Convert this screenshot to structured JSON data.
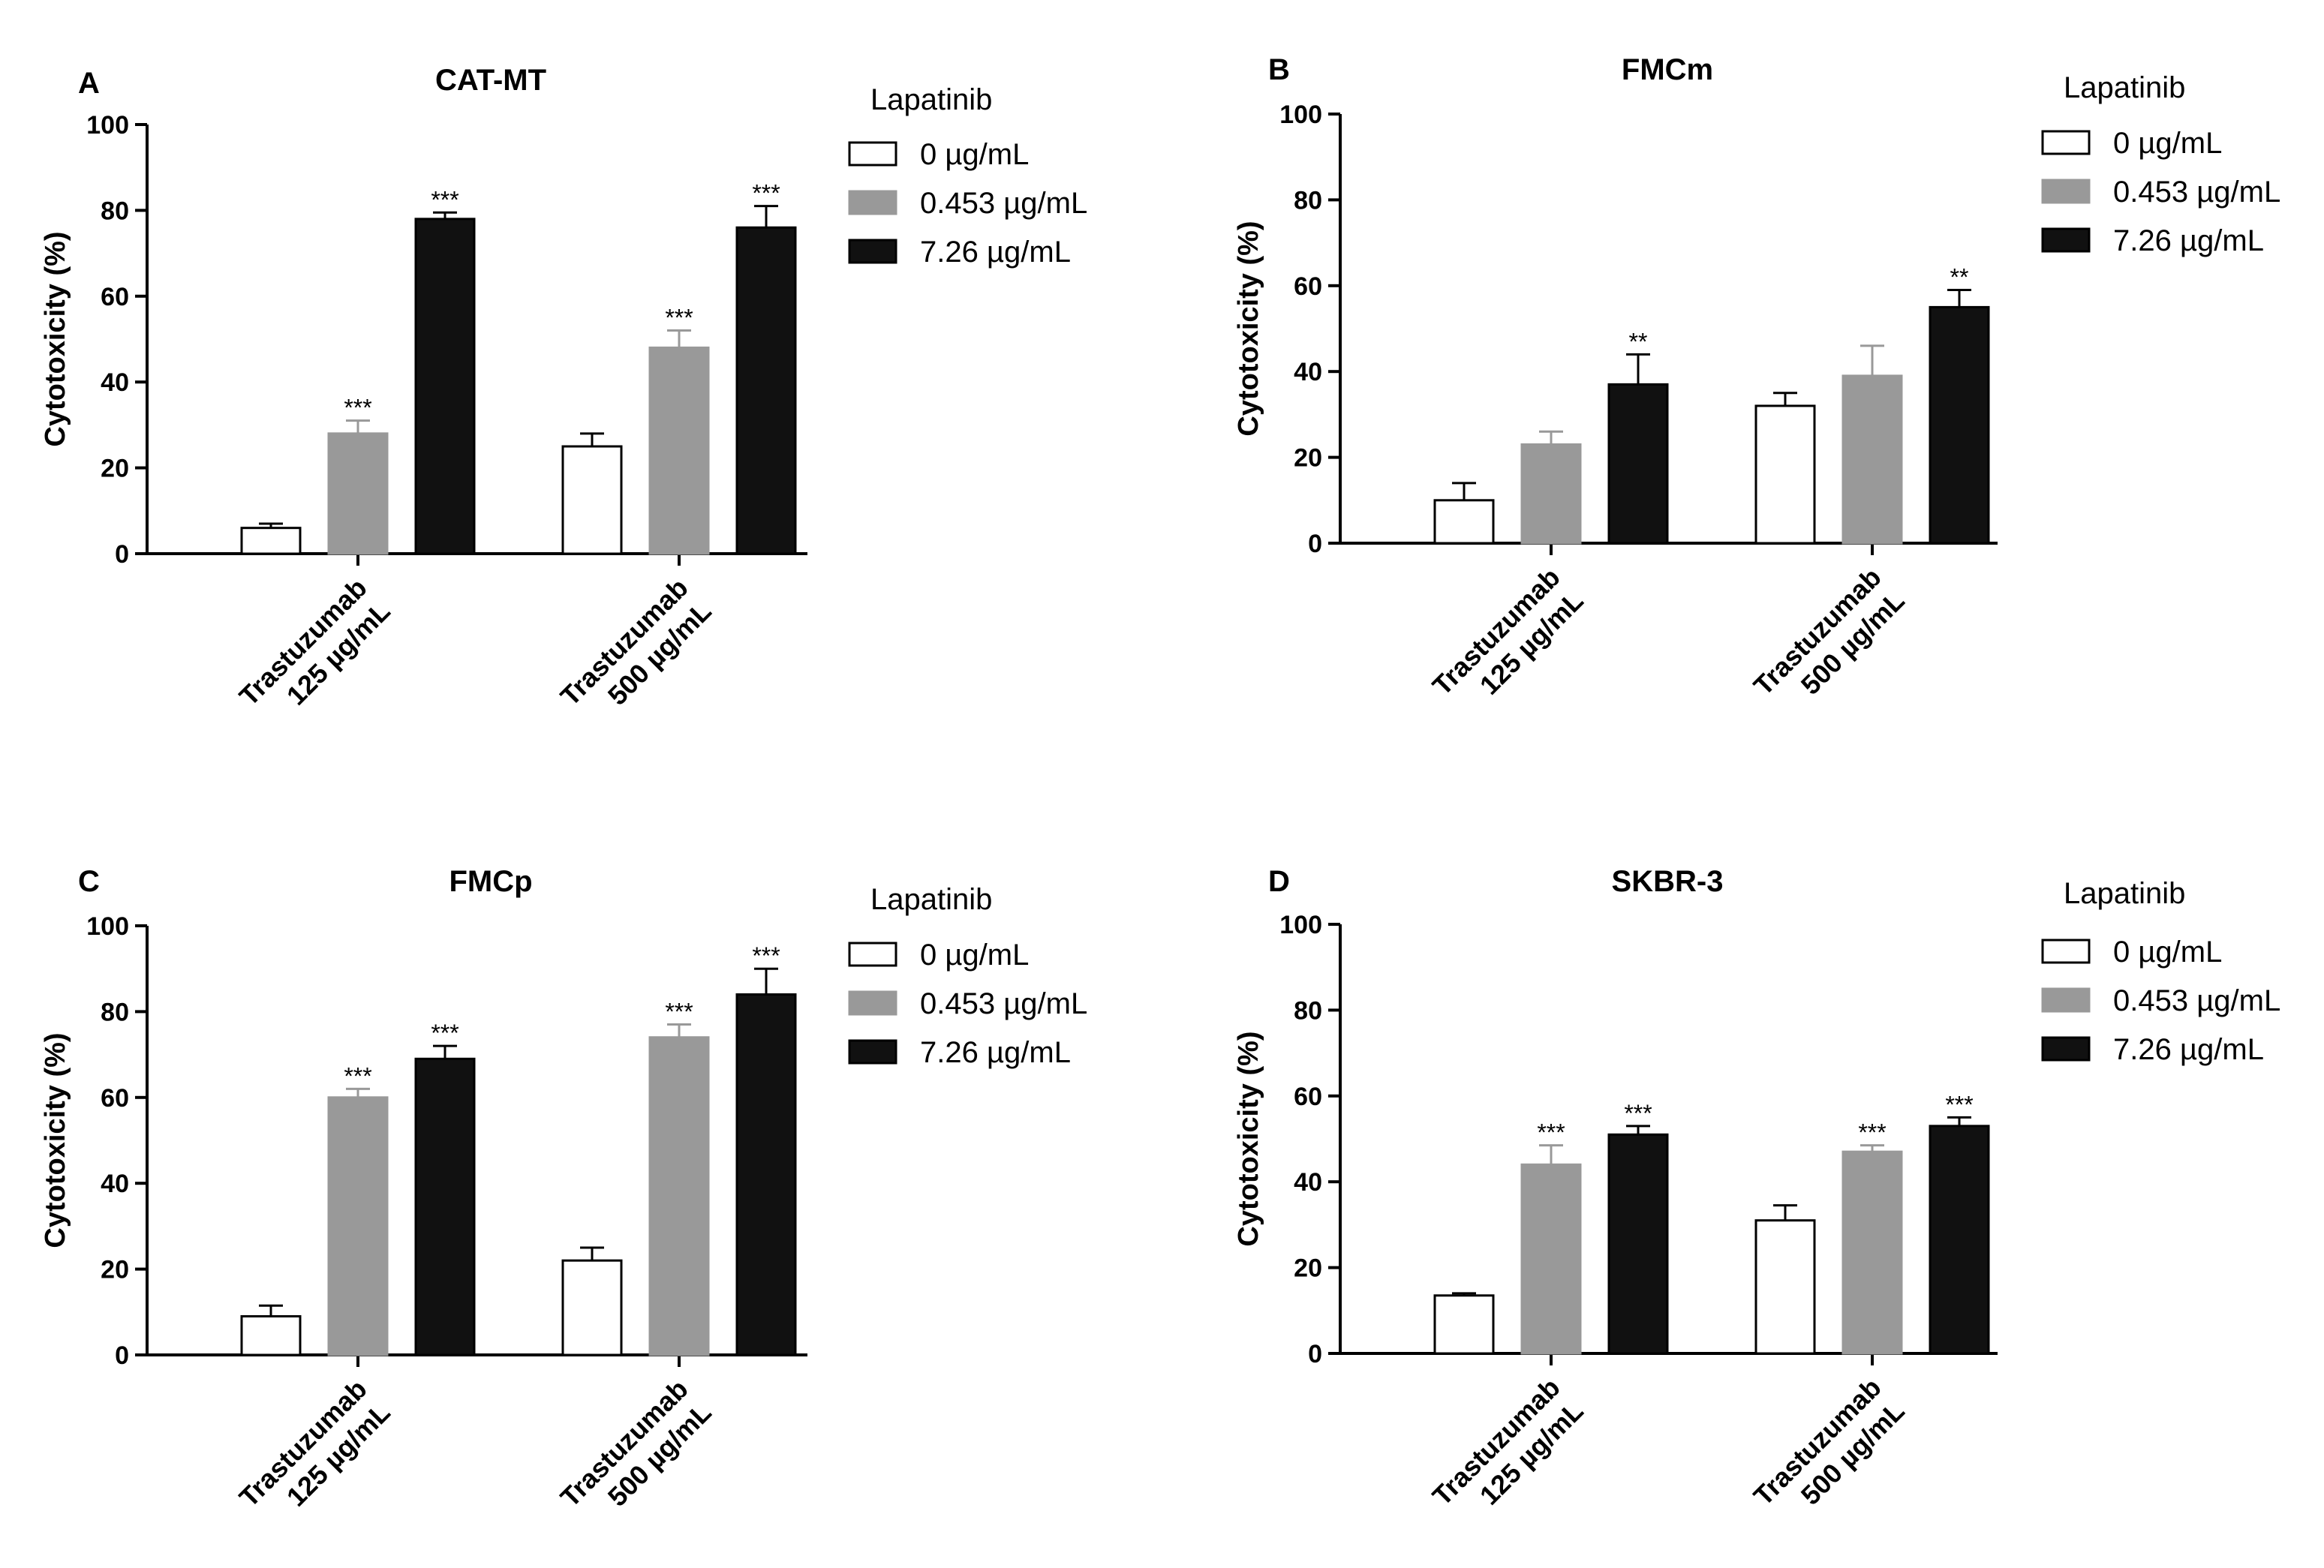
{
  "legend": {
    "title": "Lapatinib",
    "entries": [
      {
        "label": "0 µg/mL",
        "fill": "#ffffff",
        "stroke": "#000000"
      },
      {
        "label": "0.453 µg/mL",
        "fill": "#999999",
        "stroke": "#999999"
      },
      {
        "label": "7.26 µg/mL",
        "fill": "#111111",
        "stroke": "#000000"
      }
    ]
  },
  "categories": [
    [
      "Trastuzumab",
      "125 µg/mL"
    ],
    [
      "Trastuzumab",
      "500 µg/mL"
    ]
  ],
  "ylabel": "Cytotoxicity (%)",
  "chart_data": [
    {
      "type": "bar",
      "panel": "A",
      "title": "CAT-MT",
      "ylim": [
        0,
        100
      ],
      "yticks": [
        0,
        20,
        40,
        60,
        80,
        100
      ],
      "series": [
        {
          "name": "0 µg/mL",
          "values": [
            6,
            25
          ],
          "errors": [
            1,
            3
          ],
          "sig": [
            "",
            ""
          ]
        },
        {
          "name": "0.453 µg/mL",
          "values": [
            28,
            48
          ],
          "errors": [
            3,
            4
          ],
          "sig": [
            "***",
            "***"
          ]
        },
        {
          "name": "7.26 µg/mL",
          "values": [
            78,
            76
          ],
          "errors": [
            1.5,
            5
          ],
          "sig": [
            "***",
            "***"
          ]
        }
      ]
    },
    {
      "type": "bar",
      "panel": "B",
      "title": "FMCm",
      "ylim": [
        0,
        100
      ],
      "yticks": [
        0,
        20,
        40,
        60,
        80,
        100
      ],
      "series": [
        {
          "name": "0 µg/mL",
          "values": [
            10,
            32
          ],
          "errors": [
            4,
            3
          ],
          "sig": [
            "",
            ""
          ]
        },
        {
          "name": "0.453 µg/mL",
          "values": [
            23,
            39
          ],
          "errors": [
            3,
            7
          ],
          "sig": [
            "",
            ""
          ]
        },
        {
          "name": "7.26 µg/mL",
          "values": [
            37,
            55
          ],
          "errors": [
            7,
            4
          ],
          "sig": [
            "**",
            "**"
          ]
        }
      ]
    },
    {
      "type": "bar",
      "panel": "C",
      "title": "FMCp",
      "ylim": [
        0,
        100
      ],
      "yticks": [
        0,
        20,
        40,
        60,
        80,
        100
      ],
      "series": [
        {
          "name": "0 µg/mL",
          "values": [
            9,
            22
          ],
          "errors": [
            2.5,
            3
          ],
          "sig": [
            "",
            ""
          ]
        },
        {
          "name": "0.453 µg/mL",
          "values": [
            60,
            74
          ],
          "errors": [
            2,
            3
          ],
          "sig": [
            "***",
            "***"
          ]
        },
        {
          "name": "7.26 µg/mL",
          "values": [
            69,
            84
          ],
          "errors": [
            3,
            6
          ],
          "sig": [
            "***",
            "***"
          ]
        }
      ]
    },
    {
      "type": "bar",
      "panel": "D",
      "title": "SKBR-3",
      "ylim": [
        0,
        100
      ],
      "yticks": [
        0,
        20,
        40,
        60,
        80,
        100
      ],
      "series": [
        {
          "name": "0 µg/mL",
          "values": [
            13.5,
            31
          ],
          "errors": [
            0.5,
            3.5
          ],
          "sig": [
            "",
            ""
          ]
        },
        {
          "name": "0.453 µg/mL",
          "values": [
            44,
            47
          ],
          "errors": [
            4.5,
            1.5
          ],
          "sig": [
            "***",
            "***"
          ]
        },
        {
          "name": "7.26 µg/mL",
          "values": [
            51,
            53
          ],
          "errors": [
            2,
            2
          ],
          "sig": [
            "***",
            "***"
          ]
        }
      ]
    }
  ]
}
